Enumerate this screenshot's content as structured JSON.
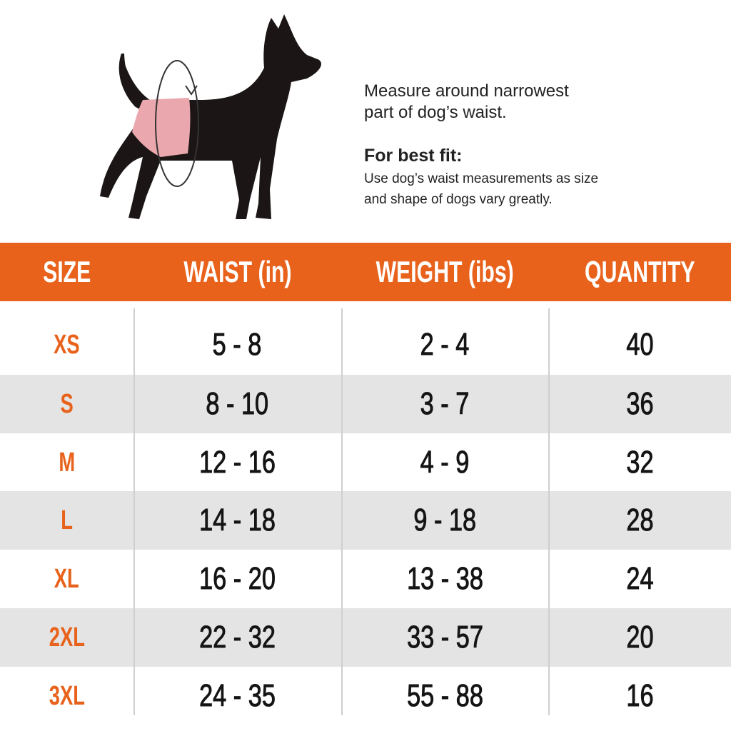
{
  "intro": {
    "measure_lines": [
      "Measure around narrowest",
      "part of dog’s waist."
    ],
    "fit_title": "For best fit:",
    "fit_lines": [
      "Use dog’s waist measurements as size",
      "and shape of dogs vary greatly."
    ]
  },
  "table": {
    "header": [
      "SIZE",
      "WAIST (in)",
      "WEIGHT (ibs)",
      "QUANTITY"
    ],
    "rows": [
      [
        "XS",
        "5 - 8",
        "2 - 4",
        40
      ],
      [
        "S",
        "8 - 10",
        "3 - 7",
        36
      ],
      [
        "M",
        "12 - 16",
        "4 - 9",
        32
      ],
      [
        "L",
        "14 - 18",
        "9 - 18",
        28
      ],
      [
        "XL",
        "16 - 20",
        "13 - 38",
        24
      ],
      [
        "2XL",
        "22 - 32",
        "33 - 57",
        20
      ],
      [
        "3XL",
        "24 - 35",
        "55 - 88",
        16
      ]
    ]
  }
}
